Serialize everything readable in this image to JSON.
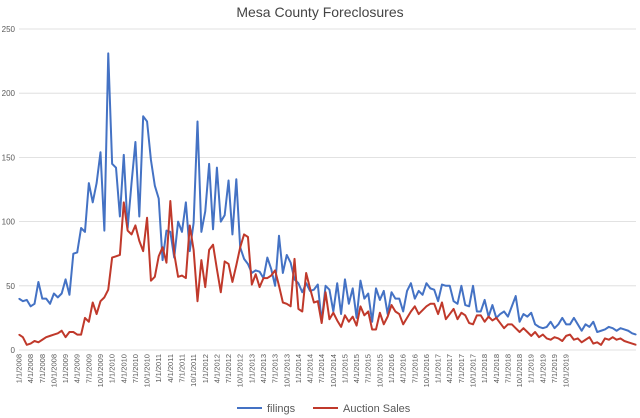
{
  "chart_data": {
    "type": "line",
    "title": "Mesa County Foreclosures",
    "xlabel": "",
    "ylabel": "",
    "ylim": [
      0,
      250
    ],
    "yticks": [
      0,
      50,
      100,
      150,
      200,
      250
    ],
    "grid": true,
    "legend_position": "bottom",
    "start_month": "1/1/2008",
    "xtick_labels": [
      "1/1/2008",
      "4/1/2008",
      "7/1/2008",
      "10/1/2008",
      "1/1/2009",
      "4/1/2009",
      "7/1/2009",
      "10/1/2009",
      "1/1/2010",
      "4/1/2010",
      "7/1/2010",
      "10/1/2010",
      "1/1/2011",
      "4/1/2011",
      "7/1/2011",
      "10/1/2011",
      "1/1/2012",
      "4/1/2012",
      "7/1/2012",
      "10/1/2012",
      "1/1/2013",
      "4/1/2013",
      "7/1/2013",
      "10/1/2013",
      "1/1/2014",
      "4/1/2014",
      "7/1/2014",
      "10/1/2014",
      "1/1/2015",
      "4/1/2015",
      "7/1/2015",
      "10/1/2015",
      "1/1/2016",
      "4/1/2016",
      "7/1/2016",
      "10/1/2016",
      "1/1/2017",
      "4/1/2017",
      "7/1/2017",
      "10/1/2017",
      "1/1/2018",
      "4/1/2018",
      "7/1/2018",
      "10/1/2018",
      "1/1/2019",
      "4/1/2019",
      "7/1/2019",
      "10/1/2019"
    ],
    "series": [
      {
        "name": "filings",
        "color": "#4472c4",
        "values": [
          40,
          38,
          39,
          34,
          36,
          53,
          40,
          40,
          36,
          44,
          41,
          44,
          55,
          43,
          75,
          76,
          95,
          92,
          130,
          115,
          130,
          154,
          93,
          231,
          145,
          142,
          104,
          152,
          95,
          130,
          162,
          104,
          182,
          178,
          148,
          128,
          118,
          70,
          93,
          92,
          72,
          100,
          92,
          115,
          77,
          99,
          178,
          92,
          108,
          145,
          94,
          142,
          100,
          105,
          132,
          90,
          133,
          80,
          71,
          67,
          60,
          62,
          61,
          56,
          72,
          63,
          50,
          89,
          60,
          74,
          68,
          55,
          52,
          45,
          52,
          46,
          47,
          51,
          22,
          50,
          47,
          30,
          52,
          28,
          55,
          36,
          48,
          25,
          54,
          40,
          44,
          22,
          48,
          39,
          46,
          28,
          45,
          40,
          40,
          30,
          46,
          52,
          40,
          46,
          43,
          52,
          48,
          47,
          38,
          51,
          50,
          50,
          38,
          36,
          50,
          35,
          34,
          50,
          30,
          30,
          39,
          26,
          35,
          25,
          28,
          30,
          26,
          34,
          42,
          22,
          28,
          26,
          29,
          20,
          18,
          17,
          18,
          22,
          17,
          20,
          25,
          20,
          20,
          25,
          20,
          15,
          20,
          18,
          22,
          14,
          15,
          16,
          18,
          17,
          15,
          17,
          16,
          15,
          13,
          12
        ]
      },
      {
        "name": "Auction Sales",
        "color": "#c0392b",
        "values": [
          12,
          10,
          4,
          5,
          7,
          6,
          8,
          10,
          11,
          12,
          13,
          15,
          10,
          14,
          14,
          12,
          12,
          25,
          22,
          37,
          28,
          38,
          41,
          47,
          72,
          73,
          74,
          115,
          93,
          90,
          97,
          85,
          77,
          103,
          54,
          57,
          73,
          80,
          68,
          116,
          75,
          57,
          58,
          56,
          97,
          78,
          38,
          70,
          49,
          78,
          82,
          63,
          45,
          69,
          67,
          53,
          66,
          80,
          90,
          88,
          51,
          59,
          49,
          56,
          56,
          58,
          62,
          50,
          37,
          36,
          34,
          71,
          32,
          30,
          60,
          48,
          37,
          38,
          21,
          45,
          24,
          29,
          23,
          18,
          27,
          22,
          26,
          19,
          34,
          27,
          30,
          16,
          16,
          29,
          20,
          26,
          35,
          30,
          28,
          20,
          25,
          30,
          34,
          28,
          31,
          34,
          36,
          36,
          28,
          37,
          24,
          28,
          32,
          24,
          29,
          27,
          21,
          20,
          27,
          27,
          22,
          26,
          23,
          25,
          21,
          17,
          20,
          20,
          17,
          14,
          17,
          14,
          11,
          14,
          10,
          12,
          9,
          8,
          10,
          9,
          7,
          11,
          12,
          8,
          9,
          6,
          8,
          10,
          5,
          6,
          4,
          9,
          8,
          10,
          8,
          9,
          7,
          6,
          5,
          4
        ]
      }
    ]
  }
}
